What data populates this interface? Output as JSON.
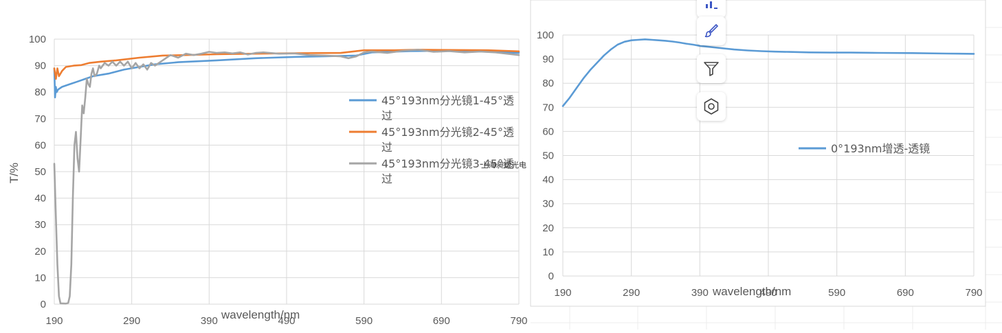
{
  "chart_data": [
    {
      "type": "line",
      "title": "",
      "xlabel": "wavelength/nm",
      "ylabel": "T/%",
      "xlim": [
        190,
        790
      ],
      "ylim": [
        0,
        100
      ],
      "x_ticks": [
        190,
        290,
        390,
        490,
        590,
        690,
        790
      ],
      "y_ticks": [
        0,
        10,
        20,
        30,
        40,
        50,
        60,
        70,
        80,
        90,
        100
      ],
      "grid": true,
      "legend_position": "right",
      "series": [
        {
          "name": "45°193nm分光镜1-45°透过",
          "color": "#5b9bd5",
          "points": [
            [
              190,
              89
            ],
            [
              191,
              78
            ],
            [
              192,
              82
            ],
            [
              193,
              80
            ],
            [
              195,
              81
            ],
            [
              200,
              82
            ],
            [
              210,
              83
            ],
            [
              220,
              84
            ],
            [
              230,
              85
            ],
            [
              240,
              86
            ],
            [
              260,
              87
            ],
            [
              280,
              88.5
            ],
            [
              300,
              89.5
            ],
            [
              320,
              90.5
            ],
            [
              350,
              91.3
            ],
            [
              400,
              92
            ],
            [
              450,
              92.8
            ],
            [
              500,
              93.3
            ],
            [
              550,
              93.6
            ],
            [
              580,
              93.8
            ],
            [
              600,
              95
            ],
            [
              650,
              95.5
            ],
            [
              700,
              95.6
            ],
            [
              750,
              95.3
            ],
            [
              790,
              94.8
            ]
          ]
        },
        {
          "name": "45°193nm分光镜2-45°透过",
          "color": "#ed7d31",
          "points": [
            [
              190,
              89
            ],
            [
              192,
              85
            ],
            [
              194,
              89
            ],
            [
              196,
              86
            ],
            [
              200,
              88
            ],
            [
              205,
              89.5
            ],
            [
              215,
              90
            ],
            [
              225,
              90.2
            ],
            [
              235,
              91
            ],
            [
              250,
              91.5
            ],
            [
              270,
              92
            ],
            [
              300,
              93
            ],
            [
              330,
              93.8
            ],
            [
              360,
              94
            ],
            [
              400,
              94.3
            ],
            [
              450,
              94.5
            ],
            [
              500,
              94.7
            ],
            [
              560,
              94.8
            ],
            [
              590,
              95.8
            ],
            [
              630,
              95.8
            ],
            [
              660,
              96
            ],
            [
              700,
              95.9
            ],
            [
              750,
              95.8
            ],
            [
              790,
              95.4
            ]
          ]
        },
        {
          "name": "45°193nm分光镜3-45°透过",
          "color": "#a5a5a5",
          "points": [
            [
              190,
              53
            ],
            [
              192,
              33
            ],
            [
              194,
              15
            ],
            [
              196,
              3
            ],
            [
              198,
              0.3
            ],
            [
              205,
              0.2
            ],
            [
              208,
              0.5
            ],
            [
              210,
              3
            ],
            [
              212,
              15
            ],
            [
              214,
              40
            ],
            [
              216,
              60
            ],
            [
              218,
              65
            ],
            [
              220,
              55
            ],
            [
              222,
              50
            ],
            [
              224,
              62
            ],
            [
              226,
              75
            ],
            [
              228,
              72
            ],
            [
              230,
              78
            ],
            [
              232,
              85
            ],
            [
              234,
              83
            ],
            [
              236,
              82
            ],
            [
              238,
              87
            ],
            [
              240,
              89
            ],
            [
              242,
              86
            ],
            [
              245,
              87
            ],
            [
              248,
              90
            ],
            [
              250,
              89
            ],
            [
              255,
              91
            ],
            [
              260,
              90
            ],
            [
              265,
              91.5
            ],
            [
              270,
              90
            ],
            [
              275,
              91.5
            ],
            [
              280,
              90
            ],
            [
              285,
              91.5
            ],
            [
              290,
              89
            ],
            [
              295,
              91
            ],
            [
              300,
              89
            ],
            [
              305,
              90.5
            ],
            [
              310,
              88.5
            ],
            [
              315,
              91
            ],
            [
              320,
              90
            ],
            [
              330,
              92
            ],
            [
              340,
              94
            ],
            [
              350,
              93
            ],
            [
              360,
              94.5
            ],
            [
              370,
              94
            ],
            [
              380,
              94.5
            ],
            [
              390,
              95.2
            ],
            [
              400,
              94.8
            ],
            [
              410,
              95
            ],
            [
              420,
              94.6
            ],
            [
              430,
              95
            ],
            [
              440,
              94.2
            ],
            [
              450,
              94.8
            ],
            [
              460,
              95
            ],
            [
              480,
              94.5
            ],
            [
              500,
              94.6
            ],
            [
              520,
              94
            ],
            [
              540,
              93.8
            ],
            [
              560,
              93.5
            ],
            [
              570,
              92.8
            ],
            [
              580,
              93.5
            ],
            [
              590,
              95
            ],
            [
              600,
              95.3
            ],
            [
              620,
              94.8
            ],
            [
              640,
              95.6
            ],
            [
              660,
              96
            ],
            [
              680,
              95.2
            ],
            [
              700,
              95.5
            ],
            [
              720,
              95
            ],
            [
              740,
              95.3
            ],
            [
              760,
              95
            ],
            [
              790,
              94
            ]
          ]
        }
      ],
      "watermark": "上海昶微光电"
    },
    {
      "type": "line",
      "title": "",
      "xlabel": "wavelength/nm",
      "ylabel": "",
      "xlim": [
        190,
        790
      ],
      "ylim": [
        0,
        100
      ],
      "x_ticks": [
        190,
        290,
        390,
        490,
        590,
        690,
        790
      ],
      "y_ticks": [
        0,
        10,
        20,
        30,
        40,
        50,
        60,
        70,
        80,
        90,
        100
      ],
      "grid": true,
      "legend_position": "right",
      "series": [
        {
          "name": "0°193nm增透-透镜",
          "color": "#5b9bd5",
          "points": [
            [
              190,
              70.5
            ],
            [
              200,
              74
            ],
            [
              210,
              78
            ],
            [
              220,
              82
            ],
            [
              230,
              85.5
            ],
            [
              240,
              88.5
            ],
            [
              250,
              91.5
            ],
            [
              260,
              94
            ],
            [
              270,
              96
            ],
            [
              280,
              97.2
            ],
            [
              290,
              97.8
            ],
            [
              300,
              98
            ],
            [
              310,
              98.2
            ],
            [
              320,
              98
            ],
            [
              330,
              97.8
            ],
            [
              340,
              97.6
            ],
            [
              350,
              97.3
            ],
            [
              360,
              96.9
            ],
            [
              370,
              96.4
            ],
            [
              380,
              96
            ],
            [
              390,
              95.5
            ],
            [
              400,
              95.2
            ],
            [
              420,
              94.6
            ],
            [
              440,
              94
            ],
            [
              460,
              93.6
            ],
            [
              480,
              93.3
            ],
            [
              500,
              93.1
            ],
            [
              520,
              93
            ],
            [
              550,
              92.8
            ],
            [
              580,
              92.7
            ],
            [
              610,
              92.7
            ],
            [
              650,
              92.6
            ],
            [
              700,
              92.5
            ],
            [
              750,
              92.3
            ],
            [
              790,
              92.2
            ]
          ]
        }
      ]
    }
  ],
  "toolbar": {
    "icons": [
      "chart-elements-icon",
      "chart-style-brush-icon",
      "chart-filter-icon",
      "chart-settings-hexagon-icon"
    ]
  },
  "colors": {
    "gridline": "#d9d9d9",
    "axis_text": "#595959",
    "toolbar_accent": "#3b55c4"
  }
}
